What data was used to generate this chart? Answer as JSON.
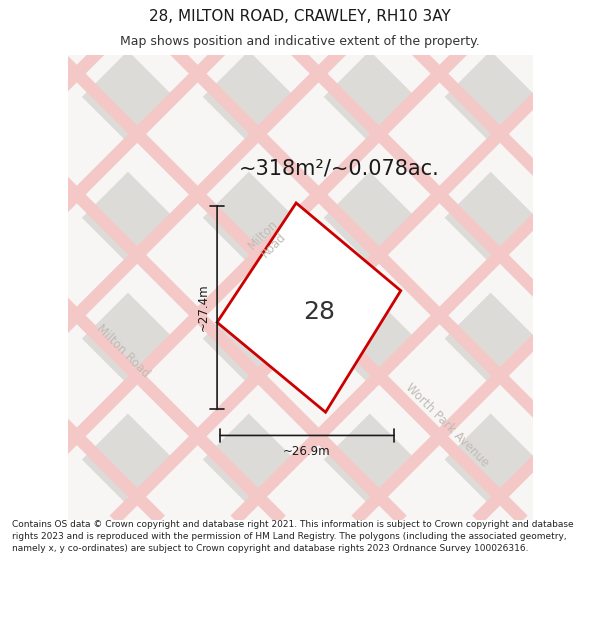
{
  "title": "28, MILTON ROAD, CRAWLEY, RH10 3AY",
  "subtitle": "Map shows position and indicative extent of the property.",
  "area_text": "~318m²/~0.078ac.",
  "house_number": "28",
  "dim_width": "~26.9m",
  "dim_height": "~27.4m",
  "footer": "Contains OS data © Crown copyright and database right 2021. This information is subject to Crown copyright and database rights 2023 and is reproduced with the permission of HM Land Registry. The polygons (including the associated geometry, namely x, y co-ordinates) are subject to Crown copyright and database rights 2023 Ordnance Survey 100026316.",
  "bg_color": "#ffffff",
  "map_bg": "#f7f6f4",
  "road_pink": "#f5c8c8",
  "block_gray": "#dddbd8",
  "property_fill": "#ffffff",
  "property_edge": "#cc0000",
  "road_label_color": "#c0bbb5",
  "title_color": "#1a1a1a",
  "subtitle_color": "#333333",
  "footer_color": "#222222",
  "dim_color": "#1a1a1a",
  "area_color": "#1a1a1a",
  "number_color": "#333333",
  "title_fontsize": 11,
  "subtitle_fontsize": 9,
  "area_fontsize": 15,
  "number_fontsize": 18,
  "road_label_fontsize": 8.5,
  "dim_fontsize": 8.5,
  "footer_fontsize": 6.5
}
